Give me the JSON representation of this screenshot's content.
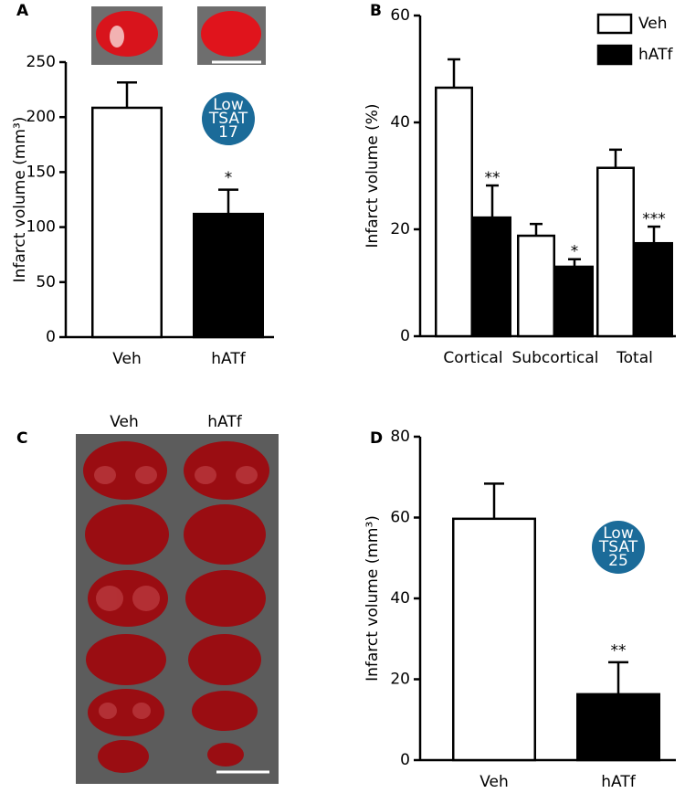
{
  "chart_data": [
    {
      "panel": "A",
      "type": "bar",
      "ylabel": "Infarct volume (mm³)",
      "categories": [
        "Veh",
        "hATf"
      ],
      "values": [
        208.5,
        112
      ],
      "errors": [
        23,
        22
      ],
      "colors": [
        "#ffffff",
        "#000000"
      ],
      "significance": [
        null,
        "*"
      ],
      "badge": {
        "lines": [
          "Low",
          "TSAT",
          "17"
        ],
        "color": "#1b6b99"
      },
      "ylim": [
        0,
        250
      ],
      "yticks": [
        0,
        50,
        100,
        150,
        200,
        250
      ]
    },
    {
      "panel": "B",
      "type": "bar",
      "ylabel": "Infarct volume (%)",
      "categories": [
        "Cortical",
        "Subcortical",
        "Total"
      ],
      "series": [
        {
          "name": "Veh",
          "color": "#ffffff",
          "values": [
            46.5,
            18.8,
            31.5
          ],
          "errors": [
            5.3,
            2.2,
            3.4
          ]
        },
        {
          "name": "hATf",
          "color": "#000000",
          "values": [
            22.2,
            13,
            17.4
          ],
          "errors": [
            6,
            1.4,
            3.1
          ],
          "significance": [
            "**",
            "*",
            "***"
          ]
        }
      ],
      "legend": "upper right",
      "ylim": [
        0,
        60
      ],
      "yticks": [
        0,
        20,
        40,
        60
      ]
    },
    {
      "panel": "D",
      "type": "bar",
      "ylabel": "Infarct volume (mm³)",
      "categories": [
        "Veh",
        "hATf"
      ],
      "values": [
        59.7,
        16.3
      ],
      "errors": [
        8.7,
        7.9
      ],
      "colors": [
        "#ffffff",
        "#000000"
      ],
      "significance": [
        null,
        "**"
      ],
      "badge": {
        "lines": [
          "Low",
          "TSAT",
          "25"
        ],
        "color": "#1b6b99"
      },
      "ylim": [
        0,
        80
      ],
      "yticks": [
        0,
        20,
        40,
        60,
        80
      ]
    }
  ],
  "image_panel": {
    "panel": "C",
    "columns": [
      "Veh",
      "hATf"
    ]
  }
}
